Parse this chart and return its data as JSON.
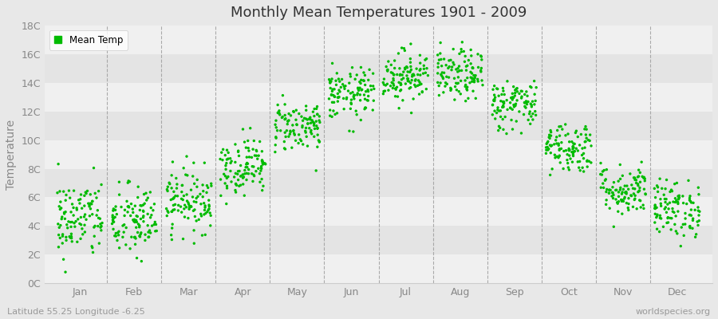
{
  "title": "Monthly Mean Temperatures 1901 - 2009",
  "ylabel": "Temperature",
  "dot_color": "#00bb00",
  "bg_color": "#e8e8e8",
  "plot_bg_color": "#f5f5f5",
  "legend_label": "Mean Temp",
  "subtitle_left": "Latitude 55.25 Longitude -6.25",
  "subtitle_right": "worldspecies.org",
  "ytick_labels": [
    "0C",
    "2C",
    "4C",
    "6C",
    "8C",
    "10C",
    "12C",
    "14C",
    "16C",
    "18C"
  ],
  "ytick_values": [
    0,
    2,
    4,
    6,
    8,
    10,
    12,
    14,
    16,
    18
  ],
  "ylim": [
    0,
    18
  ],
  "months": [
    "Jan",
    "Feb",
    "Mar",
    "Apr",
    "May",
    "Jun",
    "Jul",
    "Aug",
    "Sep",
    "Oct",
    "Nov",
    "Dec"
  ],
  "month_means": [
    4.5,
    4.3,
    5.8,
    8.2,
    11.0,
    13.2,
    14.5,
    14.5,
    12.5,
    9.5,
    6.5,
    5.2
  ],
  "month_stds": [
    1.4,
    1.3,
    1.1,
    1.0,
    0.9,
    0.9,
    0.9,
    0.9,
    0.9,
    0.9,
    0.9,
    1.0
  ],
  "n_years": 109,
  "seed": 42,
  "band_colors": [
    "#f0f0f0",
    "#e4e4e4"
  ],
  "vline_color": "#999999",
  "tick_color": "#888888",
  "title_color": "#333333"
}
